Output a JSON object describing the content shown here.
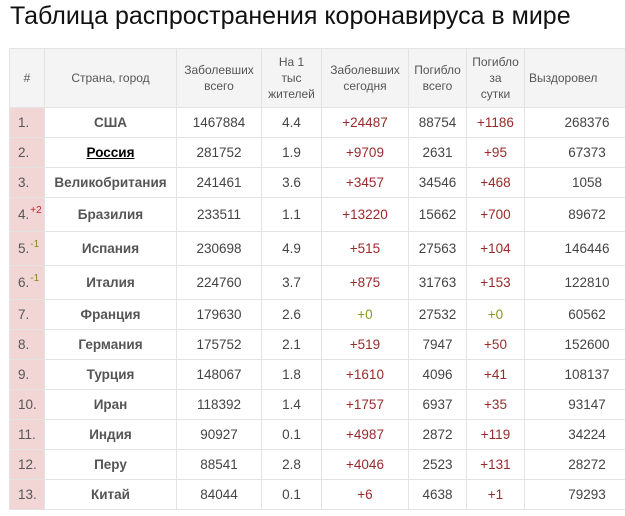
{
  "title": "Таблица распространения коронавируса в мире",
  "headers": {
    "rank": "#",
    "country": "Страна, город",
    "cases": [
      "Заболевших",
      "всего"
    ],
    "per1k": [
      "На 1",
      "тыс",
      "жителей"
    ],
    "today": [
      "Заболевших",
      "сегодня"
    ],
    "deaths": [
      "Погибло",
      "всего"
    ],
    "deaths_today": [
      "Погибло",
      "за",
      "сутки"
    ],
    "recovered": "Выздоровел"
  },
  "rows": [
    {
      "rank": "1.",
      "delta": "",
      "country": "США",
      "cases": "1467884",
      "per1k": "4.4",
      "today": "+24487",
      "deaths": "88754",
      "deaths_today": "+1186",
      "recovered": "268376"
    },
    {
      "rank": "2.",
      "delta": "",
      "country": "Россия",
      "cases": "281752",
      "per1k": "1.9",
      "today": "+9709",
      "deaths": "2631",
      "deaths_today": "+95",
      "recovered": "67373"
    },
    {
      "rank": "3.",
      "delta": "",
      "country": "Великобритания",
      "cases": "241461",
      "per1k": "3.6",
      "today": "+3457",
      "deaths": "34546",
      "deaths_today": "+468",
      "recovered": "1058"
    },
    {
      "rank": "4.",
      "delta": "+2",
      "country": "Бразилия",
      "cases": "233511",
      "per1k": "1.1",
      "today": "+13220",
      "deaths": "15662",
      "deaths_today": "+700",
      "recovered": "89672"
    },
    {
      "rank": "5.",
      "delta": "-1",
      "country": "Испания",
      "cases": "230698",
      "per1k": "4.9",
      "today": "+515",
      "deaths": "27563",
      "deaths_today": "+104",
      "recovered": "146446"
    },
    {
      "rank": "6.",
      "delta": "-1",
      "country": "Италия",
      "cases": "224760",
      "per1k": "3.7",
      "today": "+875",
      "deaths": "31763",
      "deaths_today": "+153",
      "recovered": "122810"
    },
    {
      "rank": "7.",
      "delta": "",
      "country": "Франция",
      "cases": "179630",
      "per1k": "2.6",
      "today": "+0",
      "deaths": "27532",
      "deaths_today": "+0",
      "recovered": "60562"
    },
    {
      "rank": "8.",
      "delta": "",
      "country": "Германия",
      "cases": "175752",
      "per1k": "2.1",
      "today": "+519",
      "deaths": "7947",
      "deaths_today": "+50",
      "recovered": "152600"
    },
    {
      "rank": "9.",
      "delta": "",
      "country": "Турция",
      "cases": "148067",
      "per1k": "1.8",
      "today": "+1610",
      "deaths": "4096",
      "deaths_today": "+41",
      "recovered": "108137"
    },
    {
      "rank": "10.",
      "delta": "",
      "country": "Иран",
      "cases": "118392",
      "per1k": "1.4",
      "today": "+1757",
      "deaths": "6937",
      "deaths_today": "+35",
      "recovered": "93147"
    },
    {
      "rank": "11.",
      "delta": "",
      "country": "Индия",
      "cases": "90927",
      "per1k": "0.1",
      "today": "+4987",
      "deaths": "2872",
      "deaths_today": "+119",
      "recovered": "34224"
    },
    {
      "rank": "12.",
      "delta": "",
      "country": "Перу",
      "cases": "88541",
      "per1k": "2.8",
      "today": "+4046",
      "deaths": "2523",
      "deaths_today": "+131",
      "recovered": "28272"
    },
    {
      "rank": "13.",
      "delta": "",
      "country": "Китай",
      "cases": "84044",
      "per1k": "0.1",
      "today": "+6",
      "deaths": "4638",
      "deaths_today": "+1",
      "recovered": "79293"
    }
  ],
  "colors": {
    "rank_bg": "#f2d6d6",
    "plus_text": "#9a2a2a",
    "zero_text": "#8a9a20",
    "delta_up": "#b3262c",
    "delta_down": "#7a8a1c",
    "header_bg": "#f4f4f4"
  }
}
